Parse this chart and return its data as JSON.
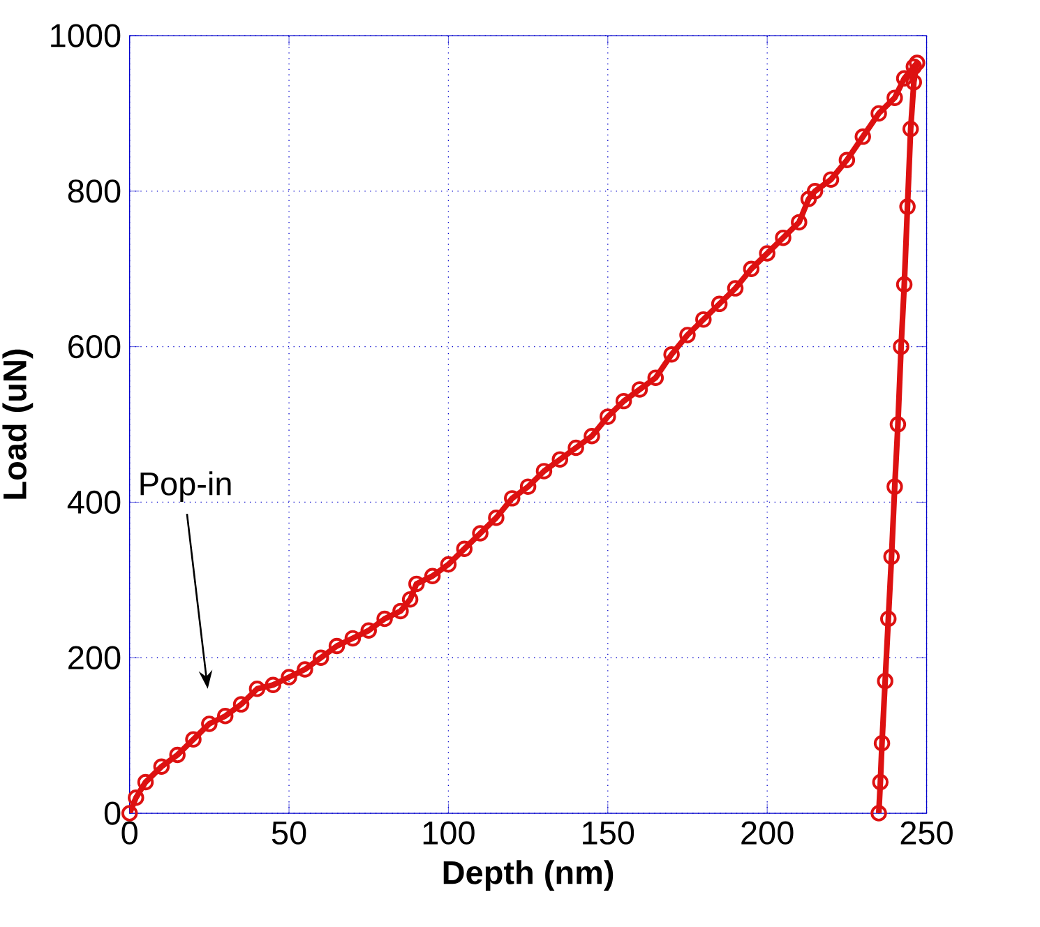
{
  "chart_data": {
    "type": "line",
    "xlabel": "Depth (nm)",
    "ylabel": "Load (uN)",
    "xlim": [
      0,
      250
    ],
    "ylim": [
      0,
      1000
    ],
    "xticks": [
      0,
      50,
      100,
      150,
      200,
      250
    ],
    "yticks": [
      0,
      200,
      400,
      600,
      800,
      1000
    ],
    "grid": true,
    "marker": "circle",
    "line_style": "solid",
    "series": [
      {
        "color": "#dd1111",
        "x": [
          0,
          2,
          5,
          10,
          15,
          20,
          25,
          30,
          35,
          40,
          45,
          50,
          55,
          60,
          65,
          70,
          75,
          80,
          85,
          88,
          90,
          95,
          100,
          105,
          110,
          115,
          120,
          125,
          130,
          135,
          140,
          145,
          150,
          155,
          160,
          165,
          170,
          175,
          180,
          185,
          190,
          195,
          200,
          205,
          210,
          213,
          215,
          220,
          225,
          230,
          235,
          240,
          243,
          246,
          247,
          246,
          245,
          244,
          243,
          242,
          241,
          240,
          239,
          238,
          237,
          236,
          235.5,
          235
        ],
        "values": [
          0,
          20,
          40,
          60,
          75,
          95,
          115,
          125,
          140,
          160,
          165,
          175,
          185,
          200,
          215,
          225,
          235,
          250,
          260,
          275,
          295,
          305,
          320,
          340,
          360,
          380,
          405,
          420,
          440,
          455,
          470,
          485,
          510,
          530,
          545,
          560,
          590,
          615,
          635,
          655,
          675,
          700,
          720,
          740,
          760,
          790,
          800,
          815,
          840,
          870,
          900,
          920,
          945,
          960,
          965,
          940,
          880,
          780,
          680,
          600,
          500,
          420,
          330,
          250,
          170,
          90,
          40,
          0
        ]
      }
    ],
    "annotations": [
      "Pop-in"
    ]
  }
}
